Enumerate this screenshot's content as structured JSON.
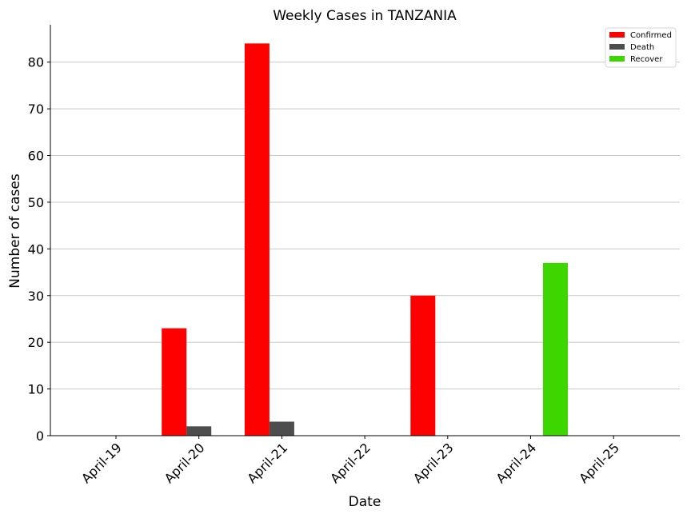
{
  "chart_data": {
    "type": "bar",
    "title": "Weekly Cases in TANZANIA",
    "xlabel": "Date",
    "ylabel": "Number of cases",
    "categories": [
      "April-19",
      "April-20",
      "April-21",
      "April-22",
      "April-23",
      "April-24",
      "April-25"
    ],
    "series": [
      {
        "name": "Confirmed",
        "color": "#ff0000",
        "values": [
          0,
          23,
          84,
          0,
          30,
          0,
          0
        ]
      },
      {
        "name": "Death",
        "color": "#4d4d4d",
        "values": [
          0,
          2,
          3,
          0,
          0,
          0,
          0
        ]
      },
      {
        "name": "Recover",
        "color": "#3dd600",
        "values": [
          0,
          0,
          0,
          0,
          0,
          37,
          0
        ]
      }
    ],
    "ylim": [
      0,
      88
    ],
    "yticks": [
      0,
      10,
      20,
      30,
      40,
      50,
      60,
      70,
      80
    ],
    "grid": "horizontal",
    "legend_position": "top-right"
  }
}
